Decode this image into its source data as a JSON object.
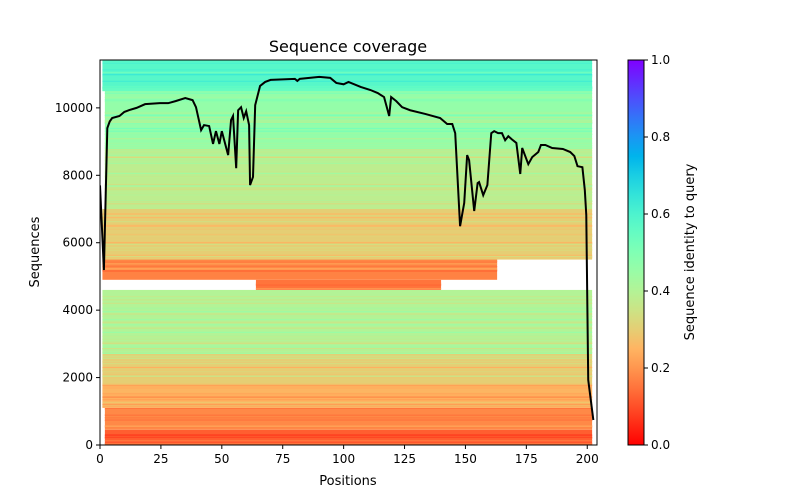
{
  "chart_data": {
    "type": "heatmap",
    "title": "Sequence coverage",
    "xlabel": "Positions",
    "ylabel": "Sequences",
    "xlim": [
      0,
      204
    ],
    "ylim": [
      0,
      11420
    ],
    "xticks": [
      0,
      25,
      50,
      75,
      100,
      125,
      150,
      175,
      200
    ],
    "yticks": [
      0,
      2000,
      4000,
      6000,
      8000,
      10000
    ],
    "grid": false,
    "colormap": "rainbow_r",
    "colorbar": {
      "label": "Sequence identity to query",
      "range": [
        0,
        1
      ],
      "ticks": [
        "0.0",
        "0.2",
        "0.4",
        "0.6",
        "0.8",
        "1.0"
      ]
    },
    "heatmap_bands": [
      {
        "seq_from": 0,
        "seq_to": 450,
        "identity": 0.12,
        "pos_from": 2,
        "pos_to": 202
      },
      {
        "seq_from": 450,
        "seq_to": 1100,
        "identity": 0.18,
        "pos_from": 2,
        "pos_to": 202
      },
      {
        "seq_from": 1100,
        "seq_to": 1800,
        "identity": 0.24,
        "pos_from": 1,
        "pos_to": 202
      },
      {
        "seq_from": 1800,
        "seq_to": 2700,
        "identity": 0.3,
        "pos_from": 1,
        "pos_to": 202
      },
      {
        "seq_from": 2700,
        "seq_to": 4600,
        "identity": 0.4,
        "pos_from": 1,
        "pos_to": 202
      },
      {
        "seq_from": 4600,
        "seq_to": 4900,
        "identity": 0.15,
        "pos_from": 64,
        "pos_to": 140
      },
      {
        "seq_from": 4900,
        "seq_to": 5500,
        "identity": 0.17,
        "pos_from": 1,
        "pos_to": 163
      },
      {
        "seq_from": 5500,
        "seq_to": 7000,
        "identity": 0.3,
        "pos_from": 1,
        "pos_to": 202
      },
      {
        "seq_from": 7000,
        "seq_to": 8800,
        "identity": 0.38,
        "pos_from": 2,
        "pos_to": 202
      },
      {
        "seq_from": 8800,
        "seq_to": 10500,
        "identity": 0.46,
        "pos_from": 2,
        "pos_to": 202
      },
      {
        "seq_from": 10500,
        "seq_to": 11420,
        "identity": 0.58,
        "pos_from": 1,
        "pos_to": 202
      }
    ],
    "coverage_line": {
      "color": "#000000",
      "x": [
        0,
        1.6,
        3,
        4,
        5,
        8,
        10,
        12,
        15,
        18.5,
        24.6,
        28,
        31,
        35,
        38,
        39.4,
        41.5,
        42.7,
        44.8,
        46.4,
        47.6,
        49,
        50,
        52.6,
        53.8,
        54.6,
        55.9,
        56.7,
        57.9,
        59,
        60,
        61.2,
        61.6,
        62.8,
        63.7,
        65.7,
        67.8,
        70,
        80,
        81,
        82,
        90,
        94.5,
        97,
        100,
        102,
        107,
        111,
        114,
        116.6,
        118.7,
        119.5,
        121.6,
        124,
        127.3,
        133.5,
        139.6,
        142.5,
        144.6,
        145.8,
        147.8,
        149.5,
        150.7,
        151.5,
        153.6,
        155,
        155.6,
        157.3,
        159,
        160.6,
        161.8,
        163.4,
        165,
        166.3,
        167.6,
        169,
        170.9,
        172.5,
        173.3,
        175.8,
        177.4,
        179.9,
        181,
        182.8,
        185.6,
        190,
        193,
        194.7,
        196,
        198,
        199,
        199.6,
        200.4,
        202.5
      ],
      "y": [
        7700,
        5190,
        9400,
        9600,
        9700,
        9760,
        9880,
        9935,
        10000,
        10110,
        10140,
        10140,
        10200,
        10290,
        10230,
        10020,
        9340,
        9490,
        9460,
        8930,
        9310,
        8930,
        9310,
        8600,
        9640,
        9760,
        8210,
        9930,
        10020,
        9700,
        9900,
        9490,
        7710,
        7950,
        10080,
        10650,
        10770,
        10830,
        10860,
        10800,
        10860,
        10920,
        10890,
        10740,
        10700,
        10770,
        10620,
        10530,
        10440,
        10320,
        9760,
        10320,
        10200,
        10020,
        9930,
        9820,
        9700,
        9520,
        9520,
        9250,
        6490,
        7180,
        8600,
        8450,
        6940,
        7770,
        7800,
        7410,
        7710,
        9250,
        9310,
        9250,
        9250,
        9040,
        9160,
        9070,
        8960,
        8040,
        8810,
        8330,
        8540,
        8690,
        8900,
        8900,
        8810,
        8780,
        8690,
        8570,
        8270,
        8240,
        7560,
        6820,
        1930,
        740
      ]
    }
  }
}
